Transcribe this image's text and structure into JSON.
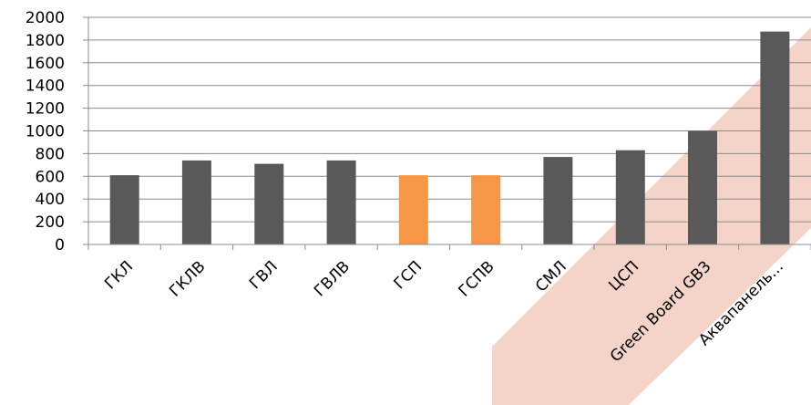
{
  "chart_data": {
    "type": "bar",
    "title": "",
    "xlabel": "",
    "ylabel": "",
    "ylim": [
      0,
      2000
    ],
    "y_ticks": [
      0,
      200,
      400,
      600,
      800,
      1000,
      1200,
      1400,
      1600,
      1800,
      2000
    ],
    "grid": true,
    "legend": "none",
    "categories": [
      "ГКЛ",
      "ГКЛВ",
      "ГВЛ",
      "ГВЛВ",
      "ГСП",
      "ГСПВ",
      "СМЛ",
      "ЦСП",
      "Green Board GB3",
      "Аквапанель..."
    ],
    "values": [
      610,
      740,
      710,
      740,
      610,
      610,
      770,
      830,
      1000,
      1875
    ],
    "bar_colors": [
      "#595959",
      "#595959",
      "#595959",
      "#595959",
      "#f79646",
      "#f79646",
      "#595959",
      "#595959",
      "#595959",
      "#595959"
    ],
    "highlight_band_color": "#f4d3c8"
  }
}
